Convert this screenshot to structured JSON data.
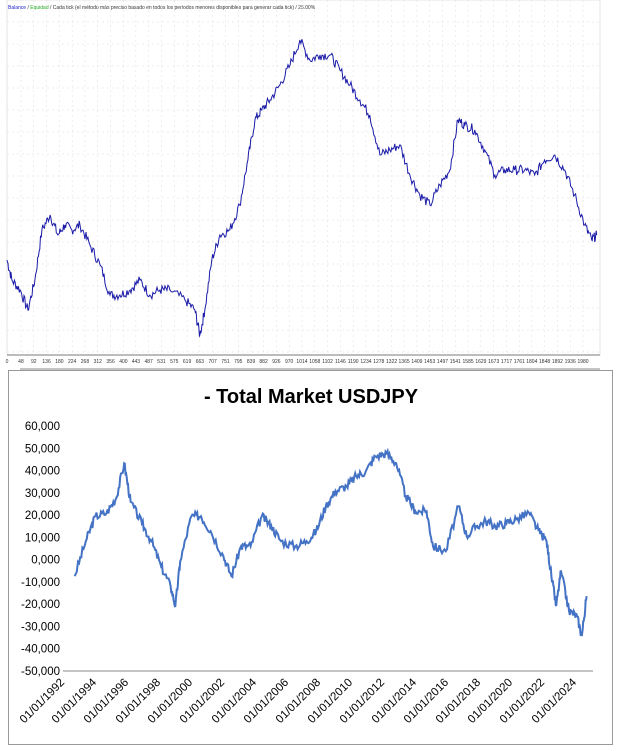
{
  "chart_data": [
    {
      "type": "line",
      "legend": {
        "balance": "Balance",
        "separator": " / ",
        "equity": "Equidad",
        "description": " / Cada tick (el método más preciso basado en todos los períodos menores disponibles para generar cada tick)  / 25.00%"
      },
      "grid": true,
      "color": "#1a1aa8",
      "x_tick_labels": [
        "0",
        "48",
        "92",
        "136",
        "180",
        "224",
        "268",
        "312",
        "356",
        "400",
        "443",
        "487",
        "531",
        "575",
        "619",
        "663",
        "707",
        "751",
        "795",
        "839",
        "882",
        "926",
        "970",
        "1014",
        "1058",
        "1102",
        "1146",
        "1190",
        "1234",
        "1278",
        "1322",
        "1365",
        "1409",
        "1453",
        "1497",
        "1541",
        "1585",
        "1629",
        "1673",
        "1717",
        "1761",
        "1804",
        "1848",
        "1892",
        "1936",
        "1980"
      ],
      "x": [
        0,
        17,
        45,
        72,
        96,
        120,
        148,
        175,
        199,
        223,
        251,
        285,
        320,
        354,
        388,
        423,
        457,
        491,
        526,
        560,
        612,
        646,
        663,
        680,
        704,
        732,
        766,
        800,
        828,
        852,
        876,
        904,
        938,
        973,
        1007,
        1041,
        1076,
        1110,
        1144,
        1179,
        1213,
        1247,
        1282,
        1316,
        1350,
        1385,
        1419,
        1454,
        1488,
        1522,
        1550,
        1574,
        1608,
        1642,
        1677,
        1711,
        1745,
        1780,
        1814,
        1848,
        1883,
        1917,
        1951,
        1986,
        2010,
        2027
      ],
      "y": [
        95,
        75,
        65,
        45,
        75,
        125,
        140,
        120,
        130,
        125,
        130,
        110,
        90,
        60,
        60,
        65,
        75,
        60,
        65,
        65,
        55,
        45,
        20,
        45,
        95,
        120,
        125,
        150,
        195,
        235,
        245,
        255,
        270,
        290,
        315,
        295,
        300,
        300,
        285,
        270,
        255,
        240,
        200,
        205,
        210,
        180,
        160,
        150,
        170,
        185,
        235,
        230,
        225,
        205,
        180,
        185,
        185,
        185,
        180,
        195,
        200,
        185,
        160,
        130,
        115,
        120
      ],
      "ylim": [
        0,
        355
      ]
    },
    {
      "type": "line",
      "title": "- Total Market USDJPY",
      "color": "#4472c4",
      "grid": false,
      "y_tick_labels": [
        "60,000",
        "50,000",
        "40,000",
        "30,000",
        "20,000",
        "10,000",
        "0,000",
        "-10,000",
        "-20,000",
        "-30,000",
        "-40,000",
        "-50,000"
      ],
      "ylim": [
        -50000,
        60000
      ],
      "x_tick_labels": [
        "01/01/1992",
        "01/01/1994",
        "01/01/1996",
        "01/01/1998",
        "01/01/2000",
        "01/01/2002",
        "01/01/2004",
        "01/01/2006",
        "01/01/2008",
        "01/01/2010",
        "01/01/2012",
        "01/01/2014",
        "01/01/2016",
        "01/01/2018",
        "01/01/2020",
        "01/01/2022",
        "01/01/2024"
      ],
      "x": [
        1992.6,
        1993.3,
        1993.9,
        1994.6,
        1995.2,
        1995.7,
        1996.1,
        1996.8,
        1997.4,
        1998.0,
        1998.6,
        1998.9,
        1999.2,
        1999.9,
        2000.5,
        2001.1,
        2001.9,
        2002.4,
        2003.0,
        2003.6,
        2004.3,
        2004.9,
        2005.5,
        2006.4,
        2007.1,
        2007.7,
        2008.3,
        2008.9,
        2009.6,
        2010.2,
        2010.8,
        2011.4,
        2012.1,
        2012.7,
        2013.3,
        2013.9,
        2014.6,
        2015.0,
        2015.8,
        2016.6,
        2017.1,
        2017.7,
        2018.3,
        2018.9,
        2019.6,
        2020.2,
        2021.0,
        2021.6,
        2022.1,
        2022.4,
        2022.7,
        2023.0,
        2023.5,
        2024.0,
        2024.3,
        2024.6
      ],
      "y": [
        -7400,
        8300,
        19500,
        21000,
        27600,
        43300,
        26000,
        16400,
        8300,
        -2900,
        -11900,
        -20800,
        -700,
        19500,
        19500,
        12800,
        1600,
        -7400,
        6000,
        6000,
        19500,
        15000,
        8300,
        6000,
        8300,
        12800,
        24000,
        30700,
        33000,
        37400,
        39700,
        46400,
        47800,
        43300,
        28500,
        21700,
        21700,
        6000,
        3800,
        24000,
        10600,
        15000,
        17300,
        15000,
        16400,
        18100,
        21000,
        12800,
        8300,
        -7400,
        -20800,
        -5200,
        -23000,
        -25300,
        -34300,
        -16400
      ]
    }
  ]
}
